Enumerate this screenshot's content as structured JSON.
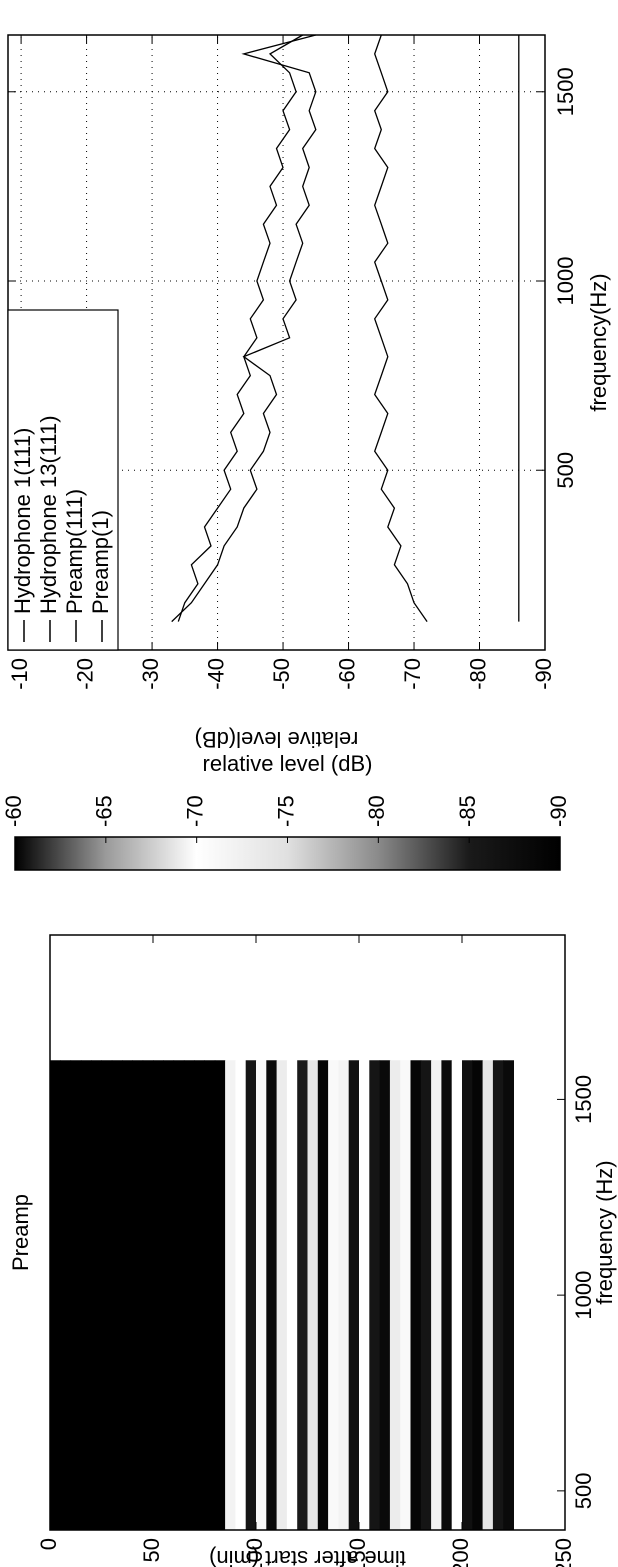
{
  "chart_data": [
    {
      "type": "heatmap",
      "title": "Preamp",
      "xlabel": "frequency (Hz)",
      "ylabel": "time after start (min)",
      "xlim": [
        400,
        1920
      ],
      "xticks": [
        500,
        1000,
        1500
      ],
      "ylim": [
        0,
        250
      ],
      "yticks": [
        0,
        50,
        100,
        150,
        200,
        250
      ],
      "yreverse": true,
      "freq_span": [
        400,
        1600
      ],
      "y_edges": [
        0,
        5,
        10,
        15,
        20,
        25,
        30,
        35,
        40,
        45,
        50,
        55,
        60,
        65,
        70,
        75,
        80,
        85,
        90,
        95,
        100,
        105,
        110,
        115,
        120,
        125,
        130,
        135,
        140,
        145,
        150,
        155,
        160,
        165,
        170,
        175,
        180,
        185,
        190,
        195,
        200,
        205,
        210,
        215,
        220,
        225
      ],
      "values": [
        -90,
        -90,
        -90,
        -90,
        -90,
        -90,
        -90,
        -90,
        -90,
        -90,
        -90,
        -90,
        -90,
        -90,
        -90,
        -90,
        -90,
        -72,
        -70,
        -86,
        -71,
        -88,
        -73,
        -70,
        -85,
        -74,
        -89,
        -71,
        -72,
        -87,
        -70,
        -86,
        -88,
        -73,
        -71,
        -89,
        -86,
        -72,
        -88,
        -70,
        -87,
        -89,
        -74,
        -86,
        -88
      ],
      "colormap": [
        "#000000",
        "#1a1a1a",
        "#8a8a8a",
        "#e0e0e0",
        "#ffffff",
        "#9a9a9a",
        "#000000"
      ],
      "colorbar": {
        "clim": [
          -90,
          -60
        ],
        "ticks": [
          -90,
          -85,
          -80,
          -75,
          -70,
          -65,
          -60
        ],
        "label": "relative level (dB)"
      }
    },
    {
      "type": "line",
      "xlabel": "frequency(Hz)",
      "ylabel": "relative level(dB)",
      "xlim": [
        25,
        1650
      ],
      "xticks": [
        500,
        1000,
        1500
      ],
      "ylim": [
        -90,
        -8
      ],
      "yticks": [
        -90,
        -80,
        -70,
        -60,
        -50,
        -40,
        -30,
        -20,
        -10
      ],
      "grid": true,
      "legend": "upper left",
      "x": [
        100,
        150,
        200,
        250,
        300,
        350,
        400,
        450,
        500,
        550,
        600,
        650,
        700,
        750,
        800,
        850,
        900,
        950,
        1000,
        1050,
        1100,
        1150,
        1200,
        1250,
        1300,
        1350,
        1400,
        1450,
        1500,
        1550,
        1600,
        1650
      ],
      "series": [
        {
          "name": "Hydrophone 1(111)",
          "color": "#000000",
          "values": [
            -34,
            -35,
            -37,
            -36,
            -39,
            -38,
            -40,
            -42,
            -41,
            -43,
            -42,
            -44,
            -43,
            -45,
            -44,
            -46,
            -45,
            -47,
            -46,
            -47,
            -48,
            -47,
            -49,
            -48,
            -50,
            -49,
            -51,
            -50,
            -52,
            -51,
            -48,
            -53
          ]
        },
        {
          "name": "Hydrophone 13(111)",
          "color": "#000000",
          "values": [
            -33,
            -36,
            -38,
            -40,
            -41,
            -43,
            -44,
            -46,
            -45,
            -47,
            -48,
            -47,
            -49,
            -48,
            -44,
            -51,
            -50,
            -52,
            -51,
            -52,
            -53,
            -52,
            -54,
            -53,
            -54,
            -53,
            -55,
            -54,
            -55,
            -54,
            -44,
            -55
          ]
        },
        {
          "name": "Preamp(111)",
          "color": "#000000",
          "values": [
            -72,
            -70,
            -69,
            -67,
            -68,
            -66,
            -67,
            -65,
            -66,
            -64,
            -65,
            -66,
            -64,
            -65,
            -66,
            -65,
            -64,
            -66,
            -65,
            -64,
            -66,
            -65,
            -64,
            -65,
            -66,
            -64,
            -65,
            -64,
            -66,
            -65,
            -64,
            -65
          ]
        },
        {
          "name": "Preamp(1)",
          "color": "#000000",
          "values": [
            -86,
            -86,
            -86,
            -86,
            -86,
            -86,
            -86,
            -86,
            -86,
            -86,
            -86,
            -86,
            -86,
            -86,
            -86,
            -86,
            -86,
            -86,
            -86,
            -86,
            -86,
            -86,
            -86,
            -86,
            -86,
            -86,
            -86,
            -86,
            -86,
            -86,
            -86,
            -86
          ]
        }
      ]
    }
  ]
}
